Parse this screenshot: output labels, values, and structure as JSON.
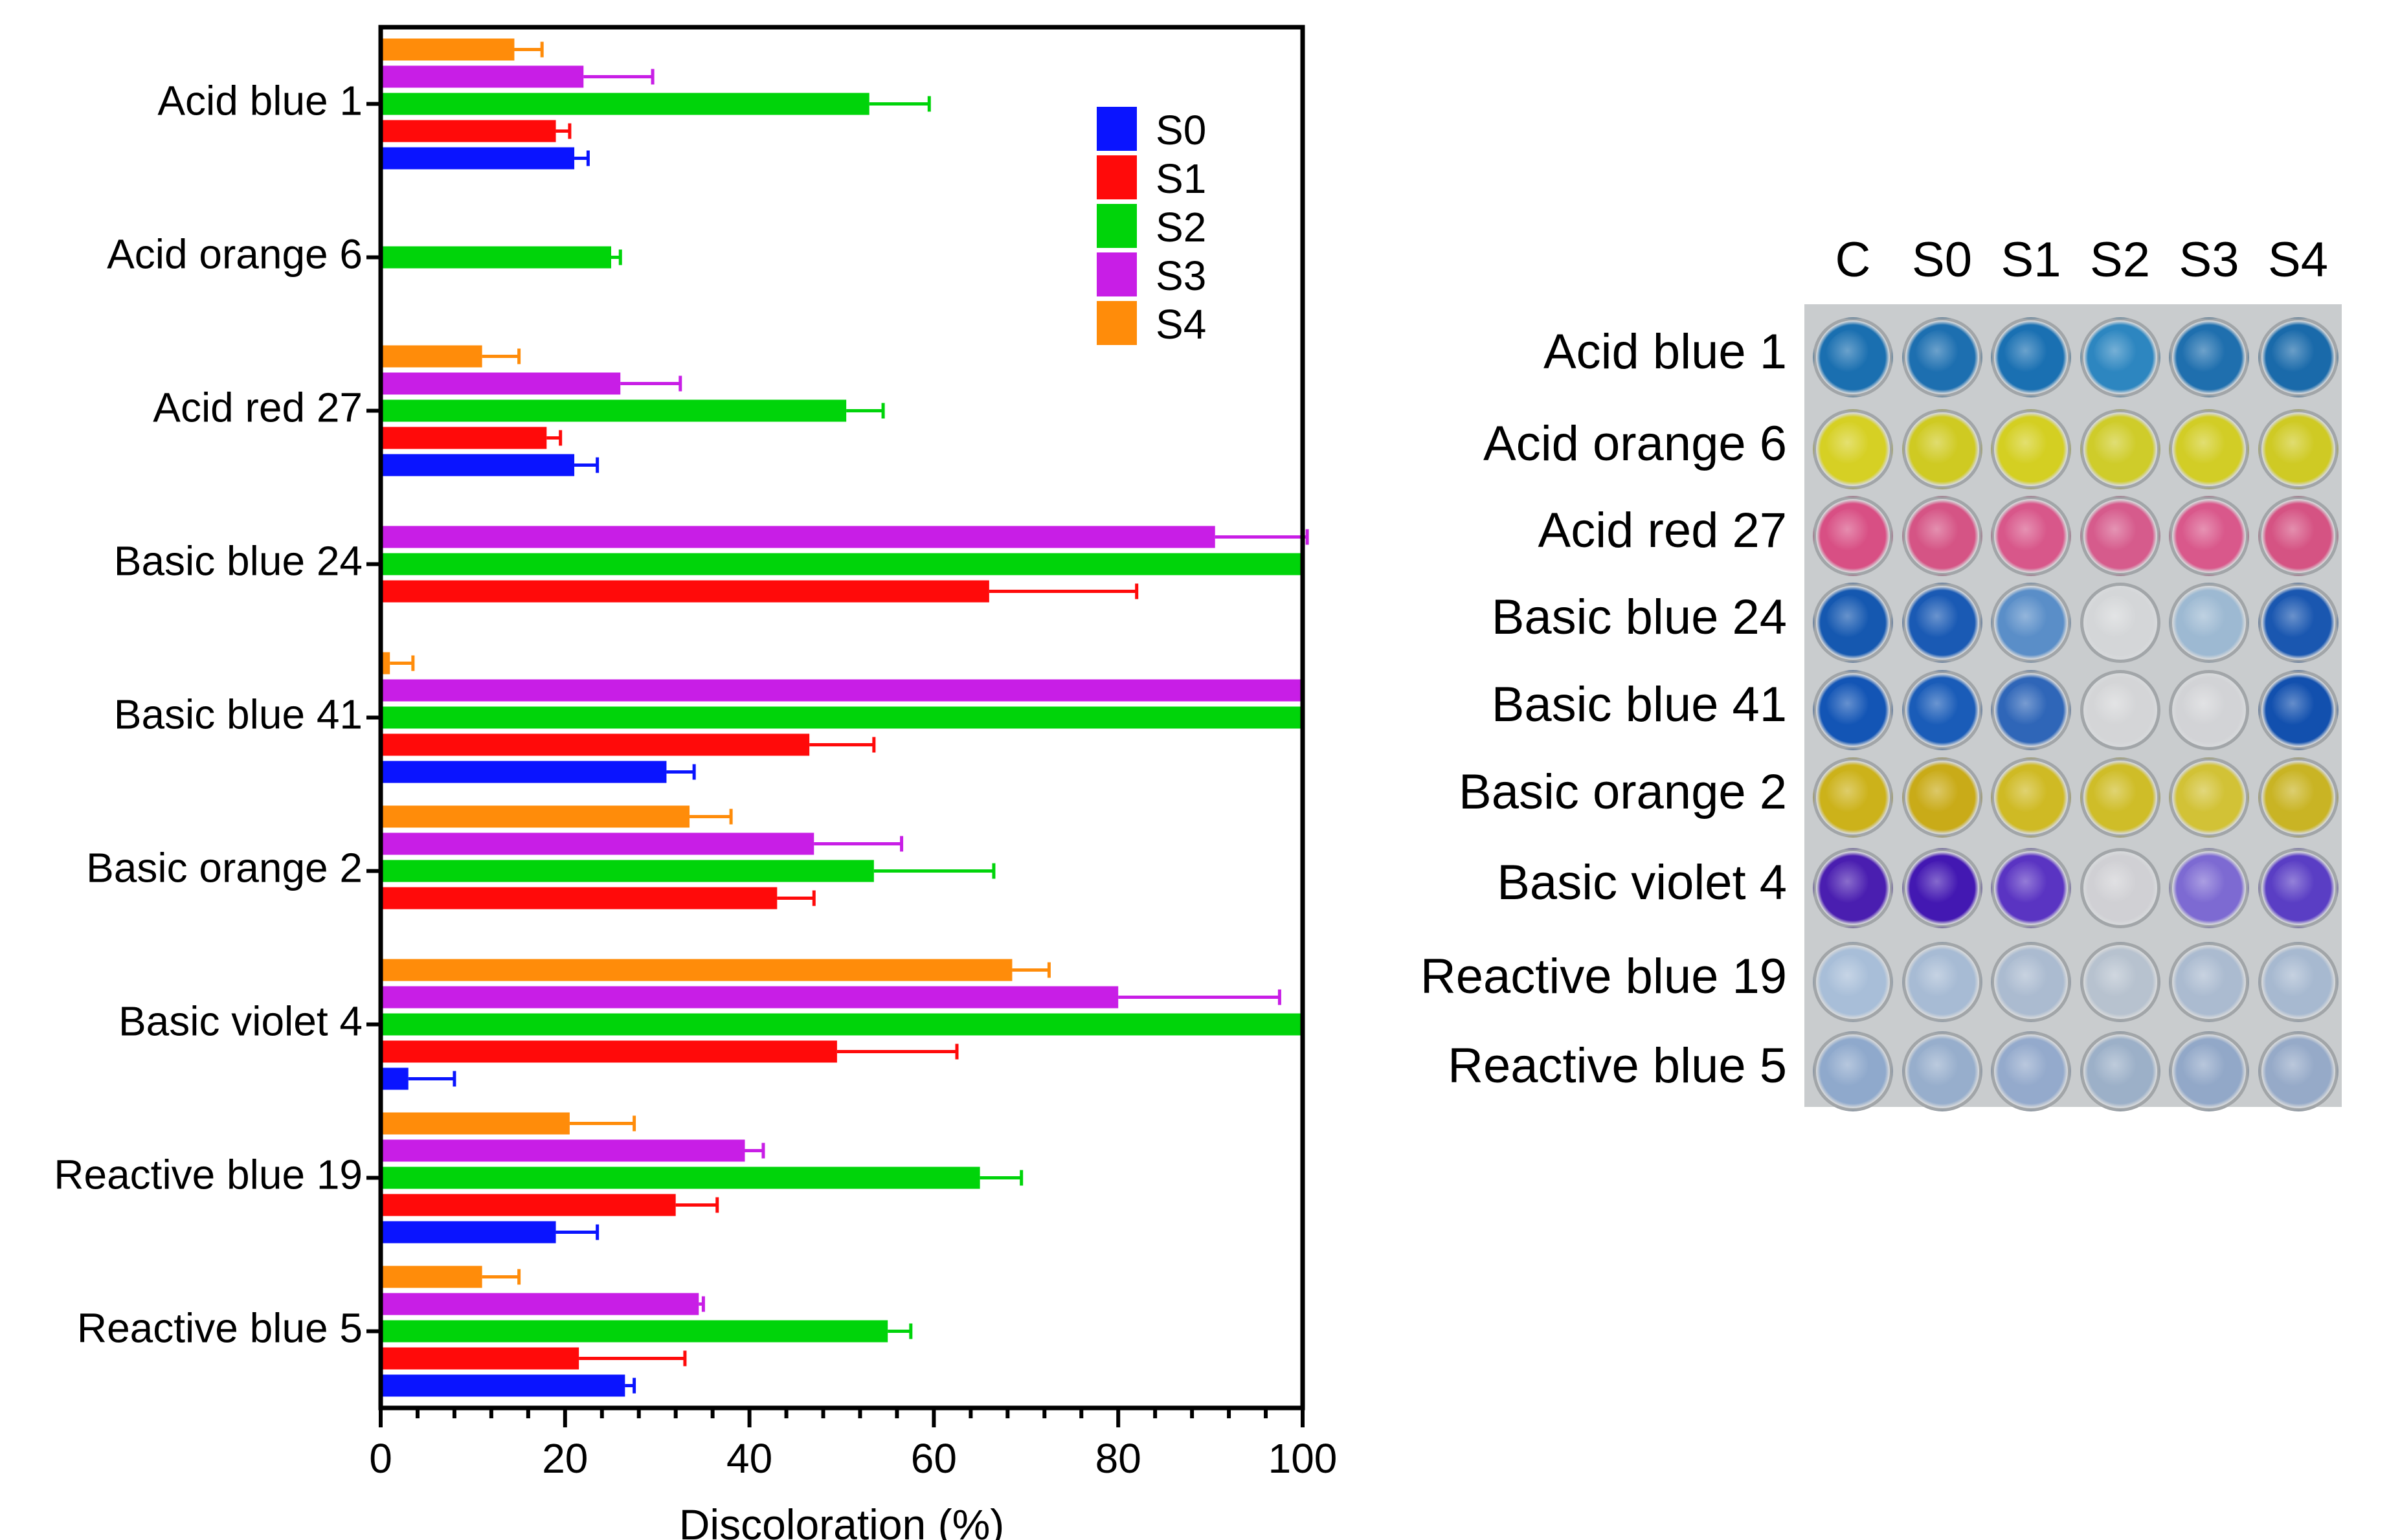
{
  "colors": {
    "S0": "#0a14ff",
    "S1": "#ff0a0a",
    "S2": "#00d40a",
    "S3": "#c81ee6",
    "S4": "#ff8c0a"
  },
  "chart_data": {
    "type": "bar",
    "orientation": "horizontal",
    "xlabel": "Discoloration (%)",
    "xlim": [
      0,
      100
    ],
    "xticks": [
      0,
      20,
      40,
      60,
      80,
      100
    ],
    "legend_position": "top-right",
    "categories": [
      "Acid blue 1",
      "Acid orange 6",
      "Acid red 27",
      "Basic blue 24",
      "Basic blue 41",
      "Basic orange 2",
      "Basic violet 4",
      "Reactive blue 19",
      "Reactive blue 5"
    ],
    "series": [
      {
        "name": "S0",
        "values": [
          21,
          0,
          21,
          0,
          31,
          0,
          3,
          19,
          26.5
        ],
        "errors": [
          1.5,
          0,
          2.5,
          0,
          3,
          0,
          5,
          4.5,
          1
        ]
      },
      {
        "name": "S1",
        "values": [
          19,
          0,
          18,
          66,
          46.5,
          43,
          49.5,
          32,
          21.5
        ],
        "errors": [
          1.5,
          0,
          1.5,
          16,
          7,
          4,
          13,
          4.5,
          11.5
        ]
      },
      {
        "name": "S2",
        "values": [
          53,
          25,
          50.5,
          100,
          100,
          53.5,
          100,
          65,
          55
        ],
        "errors": [
          6.5,
          1,
          4,
          0,
          0,
          13,
          0,
          4.5,
          2.5
        ]
      },
      {
        "name": "S3",
        "values": [
          22,
          0,
          26,
          90.5,
          100,
          47,
          80,
          39.5,
          34.5
        ],
        "errors": [
          7.5,
          0,
          6.5,
          10,
          0,
          9.5,
          17.5,
          2,
          0.5
        ]
      },
      {
        "name": "S4",
        "values": [
          14.5,
          0,
          11,
          0,
          1,
          33.5,
          68.5,
          20.5,
          11
        ],
        "errors": [
          3,
          0,
          4,
          0,
          2.5,
          4.5,
          4,
          7,
          4
        ]
      }
    ]
  },
  "plate": {
    "columns": [
      "C",
      "S0",
      "S1",
      "S2",
      "S3",
      "S4"
    ],
    "rows": [
      {
        "label": "Acid blue 1",
        "colors": [
          "#1a6fb0",
          "#1d6fb0",
          "#1a70b2",
          "#2d86c0",
          "#1f6fae",
          "#1a6aaa"
        ]
      },
      {
        "label": "Acid orange 6",
        "colors": [
          "#d6d024",
          "#cfca22",
          "#d4cf22",
          "#cfcc2a",
          "#d2cd26",
          "#cfca24"
        ]
      },
      {
        "label": "Acid red 27",
        "colors": [
          "#d84f84",
          "#d55485",
          "#d8578a",
          "#d65b8c",
          "#d9588b",
          "#d55383"
        ]
      },
      {
        "label": "Basic blue 24",
        "colors": [
          "#1558b0",
          "#1a5ab4",
          "#5a8ec8",
          "#d4d6d8",
          "#9db9d2",
          "#1a57b0"
        ]
      },
      {
        "label": "Basic blue 41",
        "colors": [
          "#1355b5",
          "#1a5cb8",
          "#2f66b8",
          "#d4d5d7",
          "#d2d3d6",
          "#1250ae"
        ]
      },
      {
        "label": "Basic orange 2",
        "colors": [
          "#ccb21a",
          "#c9ab18",
          "#cfba24",
          "#cfbd28",
          "#d2c236",
          "#c9b424"
        ]
      },
      {
        "label": "Basic violet 4",
        "colors": [
          "#4a1eb0",
          "#4318b2",
          "#5a34c2",
          "#d0d0d4",
          "#7d6ad2",
          "#5a3ec4"
        ]
      },
      {
        "label": "Reactive blue 19",
        "colors": [
          "#a8bed8",
          "#a7bbd4",
          "#abbbd0",
          "#b7c2cf",
          "#abbbd0",
          "#a7b9d0"
        ]
      },
      {
        "label": "Reactive blue 5",
        "colors": [
          "#8fa9cc",
          "#97aecc",
          "#94aacc",
          "#9cb0c8",
          "#92a8c8",
          "#96aac8"
        ]
      }
    ]
  }
}
